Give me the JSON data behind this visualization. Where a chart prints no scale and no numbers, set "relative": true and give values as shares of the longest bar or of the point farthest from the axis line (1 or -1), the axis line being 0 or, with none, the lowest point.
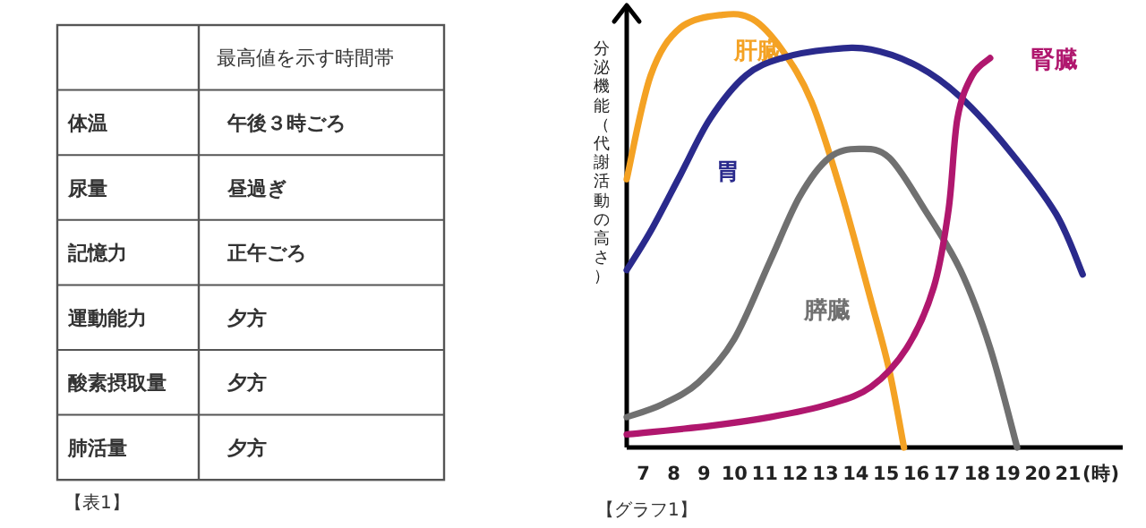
{
  "chart_data": [
    {
      "type": "other",
      "annotations": [
        "最高値を示す時間帯",
        "体温",
        "午後３時ごろ",
        "尿量",
        "昼過ぎ",
        "記憶力",
        "正午ごろ",
        "運動能力",
        "夕方",
        "酸素摂取量",
        "夕方",
        "肺活量",
        "夕方",
        "【表1】"
      ]
    },
    {
      "type": "line",
      "relative": true,
      "ylabel": "分泌機能（代謝活動の高さ）",
      "xlabel": "(時)",
      "xlim": [
        6.45,
        22.8
      ],
      "xticks": [
        7,
        8,
        9,
        10,
        11,
        12,
        13,
        14,
        15,
        16,
        17,
        18,
        19,
        20,
        21
      ],
      "line_style": "solid",
      "annotations": [
        "【グラフ1】"
      ],
      "series": [
        {
          "name": "肝臓",
          "color": "#f4a224",
          "x": [
            6.45,
            7.24,
            8.22,
            9.6,
            10.6,
            11.56,
            12.54,
            13.52,
            14.5,
            15.1,
            15.59
          ],
          "values": [
            0.62,
            0.86,
            0.97,
            1.0,
            0.99,
            0.92,
            0.8,
            0.59,
            0.34,
            0.18,
            0
          ]
        },
        {
          "name": "胃",
          "color": "#2a2a8c",
          "x": [
            6.45,
            7.24,
            8.22,
            9.2,
            10.38,
            11.56,
            13.13,
            14.5,
            16.08,
            17.45,
            19.02,
            20.6,
            21.48
          ],
          "values": [
            0.41,
            0.5,
            0.63,
            0.76,
            0.86,
            0.9,
            0.92,
            0.92,
            0.88,
            0.81,
            0.69,
            0.54,
            0.4
          ]
        },
        {
          "name": "膵臓",
          "color": "#707070",
          "x": [
            6.45,
            7.63,
            8.81,
            9.99,
            11.17,
            12.15,
            13.13,
            14.11,
            15.1,
            16.27,
            17.45,
            18.43,
            19.32
          ],
          "values": [
            0.07,
            0.1,
            0.15,
            0.25,
            0.43,
            0.58,
            0.67,
            0.69,
            0.67,
            0.55,
            0.41,
            0.23,
            0
          ]
        },
        {
          "name": "腎臓",
          "color": "#b0176e",
          "x": [
            6.45,
            9.2,
            11.17,
            13.13,
            14.5,
            15.68,
            16.57,
            17.06,
            17.35,
            17.84,
            18.43
          ],
          "values": [
            0.03,
            0.05,
            0.07,
            0.1,
            0.14,
            0.23,
            0.37,
            0.55,
            0.76,
            0.86,
            0.9
          ]
        }
      ]
    }
  ]
}
